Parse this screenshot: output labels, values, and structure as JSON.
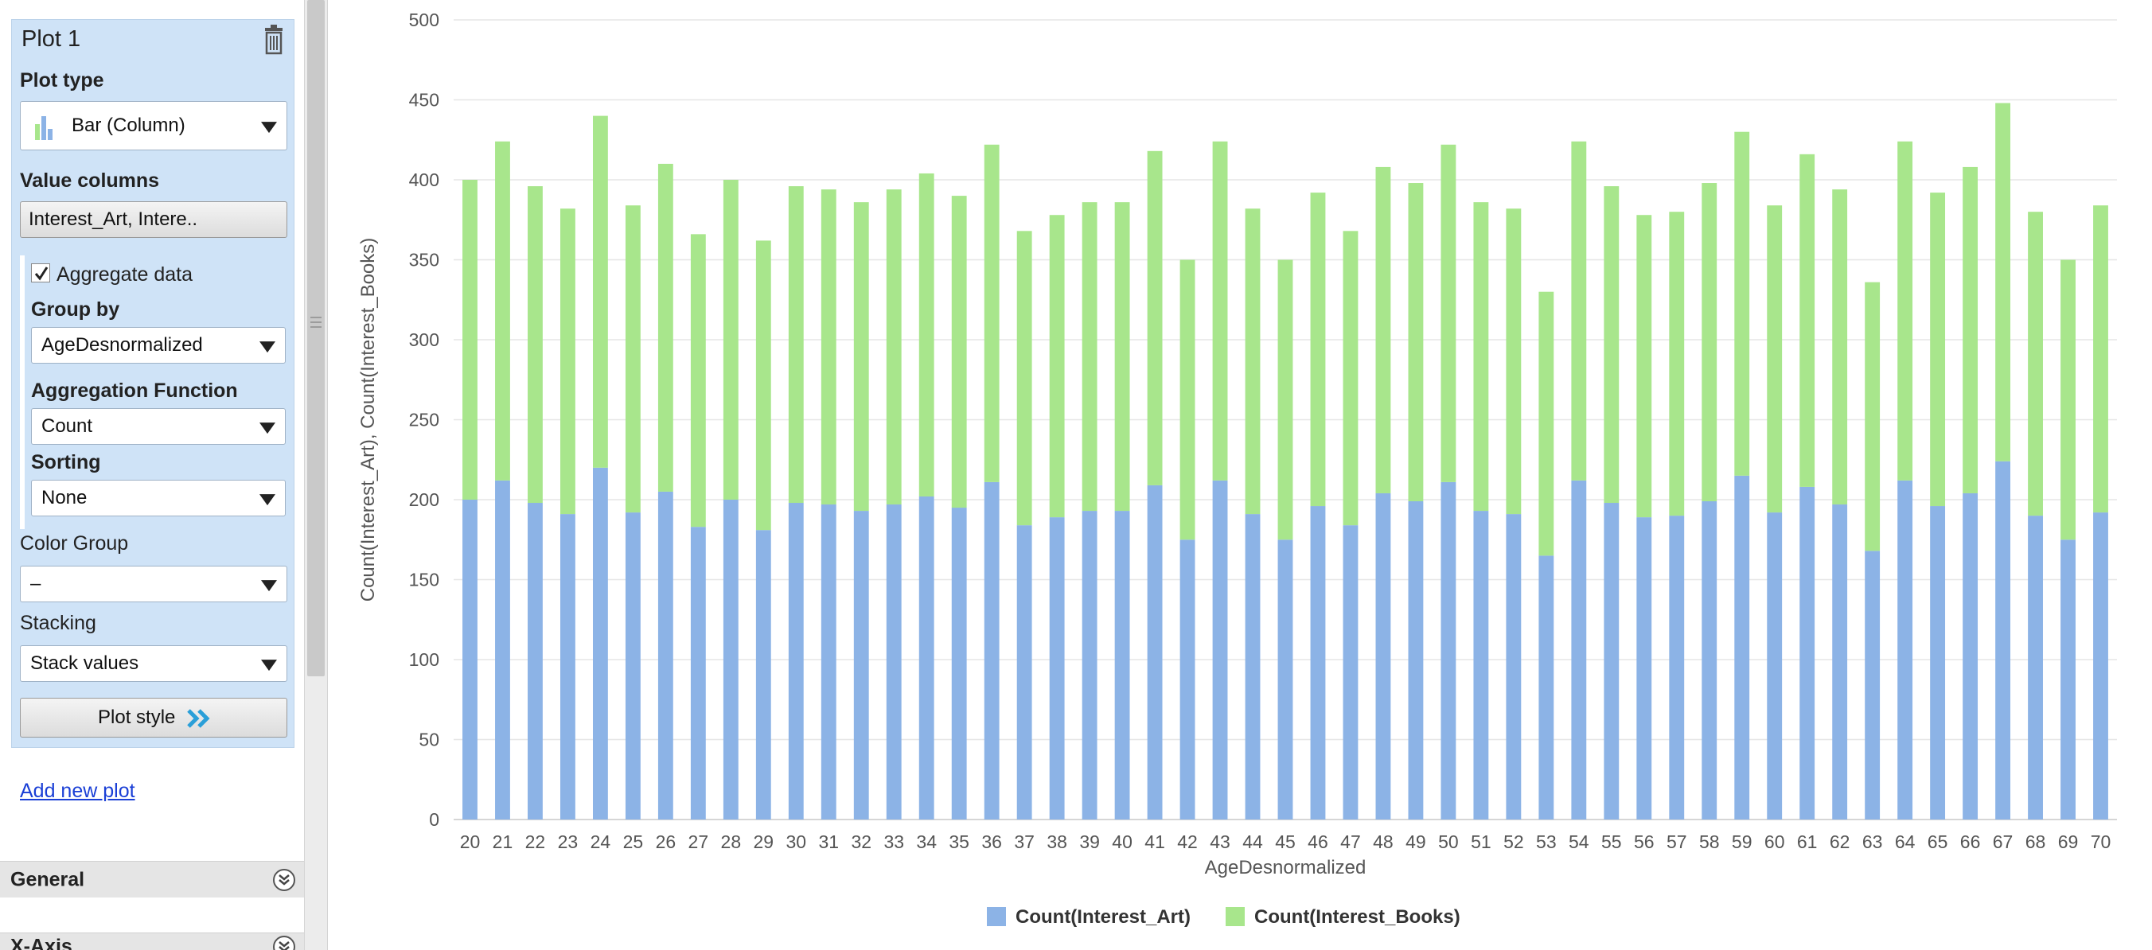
{
  "panel": {
    "plot_title": "Plot 1",
    "plot_type_label": "Plot type",
    "plot_type_value": "Bar (Column)",
    "value_columns_label": "Value columns",
    "value_columns_value": "Interest_Art, Intere..",
    "aggregate_label": "Aggregate data",
    "aggregate_checked": true,
    "group_by_label": "Group by",
    "group_by_value": "AgeDesnormalized",
    "agg_function_label": "Aggregation Function",
    "agg_function_value": "Count",
    "sorting_label": "Sorting",
    "sorting_value": "None",
    "color_group_label": "Color Group",
    "color_group_value": "–",
    "stacking_label": "Stacking",
    "stacking_value": "Stack values",
    "plot_style_label": "Plot style",
    "add_plot_label": "Add new plot",
    "sections": [
      "General",
      "X-Axis"
    ]
  },
  "icons": [
    "trash-icon",
    "bar-chart-icon",
    "chevron-down-icon",
    "double-chevron-right-icon",
    "collapse-toggle-icon"
  ],
  "colors": {
    "art": "#8cb3e6",
    "books": "#a8e68c",
    "panel_bg": "#cfe3f7",
    "link": "#1a3fd6"
  },
  "chart_data": {
    "type": "bar",
    "stacked": true,
    "xlabel": "AgeDesnormalized",
    "ylabel": "Count(Interest_Art), Count(Interest_Books)",
    "ylim": [
      0,
      500
    ],
    "yticks": [
      0,
      50,
      100,
      150,
      200,
      250,
      300,
      350,
      400,
      450,
      500
    ],
    "grid": true,
    "legend": "bottom-center",
    "categories": [
      "20",
      "21",
      "22",
      "23",
      "24",
      "25",
      "26",
      "27",
      "28",
      "29",
      "30",
      "31",
      "32",
      "33",
      "34",
      "35",
      "36",
      "37",
      "38",
      "39",
      "40",
      "41",
      "42",
      "43",
      "44",
      "45",
      "46",
      "47",
      "48",
      "49",
      "50",
      "51",
      "52",
      "53",
      "54",
      "55",
      "56",
      "57",
      "58",
      "59",
      "60",
      "61",
      "62",
      "63",
      "64",
      "65",
      "66",
      "67",
      "68",
      "69",
      "70"
    ],
    "series": [
      {
        "name": "Count(Interest_Art)",
        "values": [
          200,
          212,
          198,
          191,
          220,
          192,
          205,
          183,
          200,
          181,
          198,
          197,
          193,
          197,
          202,
          195,
          211,
          184,
          189,
          193,
          193,
          209,
          175,
          212,
          191,
          175,
          196,
          184,
          204,
          199,
          211,
          193,
          191,
          165,
          212,
          198,
          189,
          190,
          199,
          215,
          192,
          208,
          197,
          168,
          212,
          196,
          204,
          224,
          190,
          175,
          192
        ]
      },
      {
        "name": "Count(Interest_Books)",
        "values": [
          200,
          212,
          198,
          191,
          220,
          192,
          205,
          183,
          200,
          181,
          198,
          197,
          193,
          197,
          202,
          195,
          211,
          184,
          189,
          193,
          193,
          209,
          175,
          212,
          191,
          175,
          196,
          184,
          204,
          199,
          211,
          193,
          191,
          165,
          212,
          198,
          189,
          190,
          199,
          215,
          192,
          208,
          197,
          168,
          212,
          196,
          204,
          224,
          190,
          175,
          192
        ]
      }
    ]
  }
}
